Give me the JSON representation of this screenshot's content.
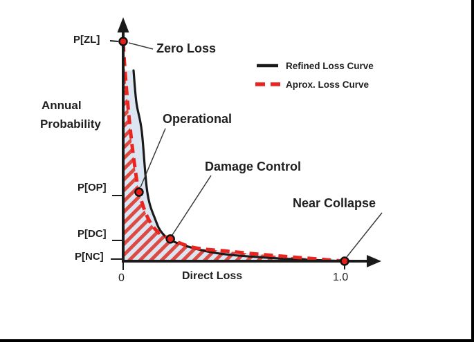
{
  "figure": {
    "ylabel_line1": "Annual",
    "ylabel_line2": "Probability",
    "xlabel": "Direct Loss",
    "x_ticks": {
      "zero": "0",
      "one": "1.0"
    },
    "y_ticks": {
      "zl": "P[ZL]",
      "op": "P[OP]",
      "dc": "P[DC]",
      "nc": "P[NC]"
    },
    "annotations": {
      "zero_loss": "Zero Loss",
      "operational": "Operational",
      "damage_control": "Damage Control",
      "near_collapse": "Near Collapse"
    },
    "legend": [
      {
        "label": "Refined Loss Curve",
        "style": "solid"
      },
      {
        "label": "Aprox. Loss Curve",
        "style": "dashed"
      }
    ]
  },
  "colors": {
    "black": "#1a1a1a",
    "red": "#e8251f",
    "dot": "#e32119",
    "blue": "#dce6f2",
    "hatch": "#dd4a41",
    "leader": "#3a3a3a",
    "text": "#1f1f1f"
  },
  "chart_data": {
    "type": "line",
    "title": "",
    "xlabel": "Direct Loss",
    "ylabel": "Annual Probability",
    "x_range": [
      0,
      1.0
    ],
    "x_tick_labels": [
      "0",
      "1.0"
    ],
    "y_tick_labels": [
      "P[NC]",
      "P[DC]",
      "P[OP]",
      "P[ZL]"
    ],
    "y_values_normalized": true,
    "legend_position": "top-right",
    "grid": false,
    "series": [
      {
        "name": "Refined Loss Curve",
        "style": "solid",
        "color": "#1a1a1a",
        "points": [
          [
            0.047,
            0.868
          ],
          [
            0.06,
            0.72
          ],
          [
            0.084,
            0.591
          ],
          [
            0.109,
            0.314
          ],
          [
            0.145,
            0.19
          ],
          [
            0.178,
            0.126
          ],
          [
            0.238,
            0.085
          ],
          [
            0.413,
            0.038
          ],
          [
            0.694,
            0.013
          ],
          [
            1.0,
            0.0
          ]
        ]
      },
      {
        "name": "Aprox. Loss Curve",
        "style": "dashed",
        "color": "#e8251f",
        "points": [
          [
            0.0,
            0.994
          ],
          [
            0.012,
            0.82
          ],
          [
            0.03,
            0.62
          ],
          [
            0.05,
            0.45
          ],
          [
            0.072,
            0.314
          ],
          [
            0.11,
            0.2
          ],
          [
            0.155,
            0.135
          ],
          [
            0.213,
            0.101
          ],
          [
            0.32,
            0.062
          ],
          [
            0.475,
            0.045
          ],
          [
            0.69,
            0.025
          ],
          [
            1.0,
            0.0
          ]
        ]
      }
    ],
    "marked_points": [
      {
        "id": "zero_loss",
        "label": "Zero Loss",
        "y_tick": "P[ZL]",
        "x": 0.0,
        "y": 1.0
      },
      {
        "id": "operational",
        "label": "Operational",
        "y_tick": "P[OP]",
        "x": 0.072,
        "y": 0.314
      },
      {
        "id": "damage_control",
        "label": "Damage Control",
        "y_tick": "P[DC]",
        "x": 0.213,
        "y": 0.101
      },
      {
        "id": "near_collapse",
        "label": "Near Collapse",
        "y_tick": "P[NC]",
        "x": 1.0,
        "y": 0.0
      }
    ]
  }
}
